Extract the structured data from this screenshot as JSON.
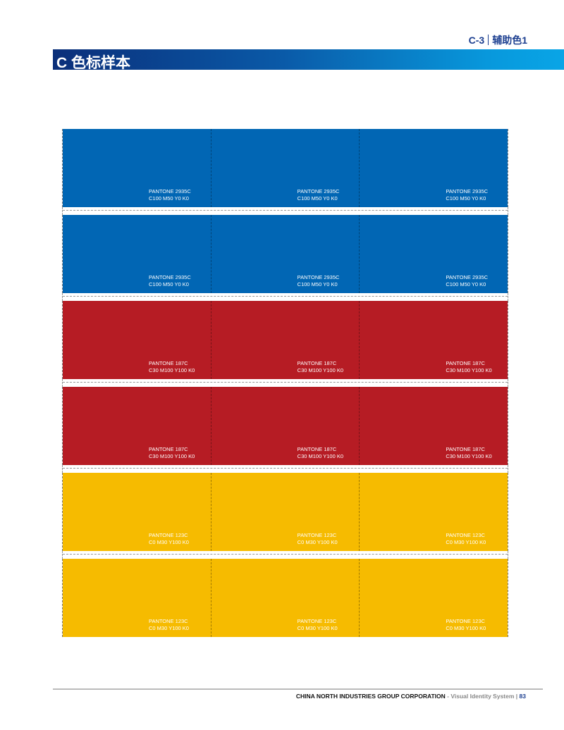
{
  "header": {
    "section_code": "C-3",
    "section_name": "辅助色1",
    "title": "C 色标样本"
  },
  "swatches": {
    "rows": [
      {
        "color": "#0166b4",
        "pantone": "PANTONE 2935C",
        "cmyk": "C100 M50 Y0 K0"
      },
      {
        "color": "#0166b4",
        "pantone": "PANTONE 2935C",
        "cmyk": "C100 M50 Y0 K0"
      },
      {
        "color": "#b61c24",
        "pantone": "PANTONE 187C",
        "cmyk": "C30 M100 Y100 K0"
      },
      {
        "color": "#b61c24",
        "pantone": "PANTONE 187C",
        "cmyk": "C30 M100 Y100 K0"
      },
      {
        "color": "#f6bb00",
        "pantone": "PANTONE 123C",
        "cmyk": "C0 M30 Y100 K0"
      },
      {
        "color": "#f6bb00",
        "pantone": "PANTONE 123C",
        "cmyk": "C0 M30 Y100 K0"
      }
    ],
    "columns": 3
  },
  "footer": {
    "corporation": "CHINA NORTH INDUSTRIES GROUP CORPORATION",
    "subtitle": " - Visual Identity System",
    "separator": " | ",
    "page": "83"
  }
}
